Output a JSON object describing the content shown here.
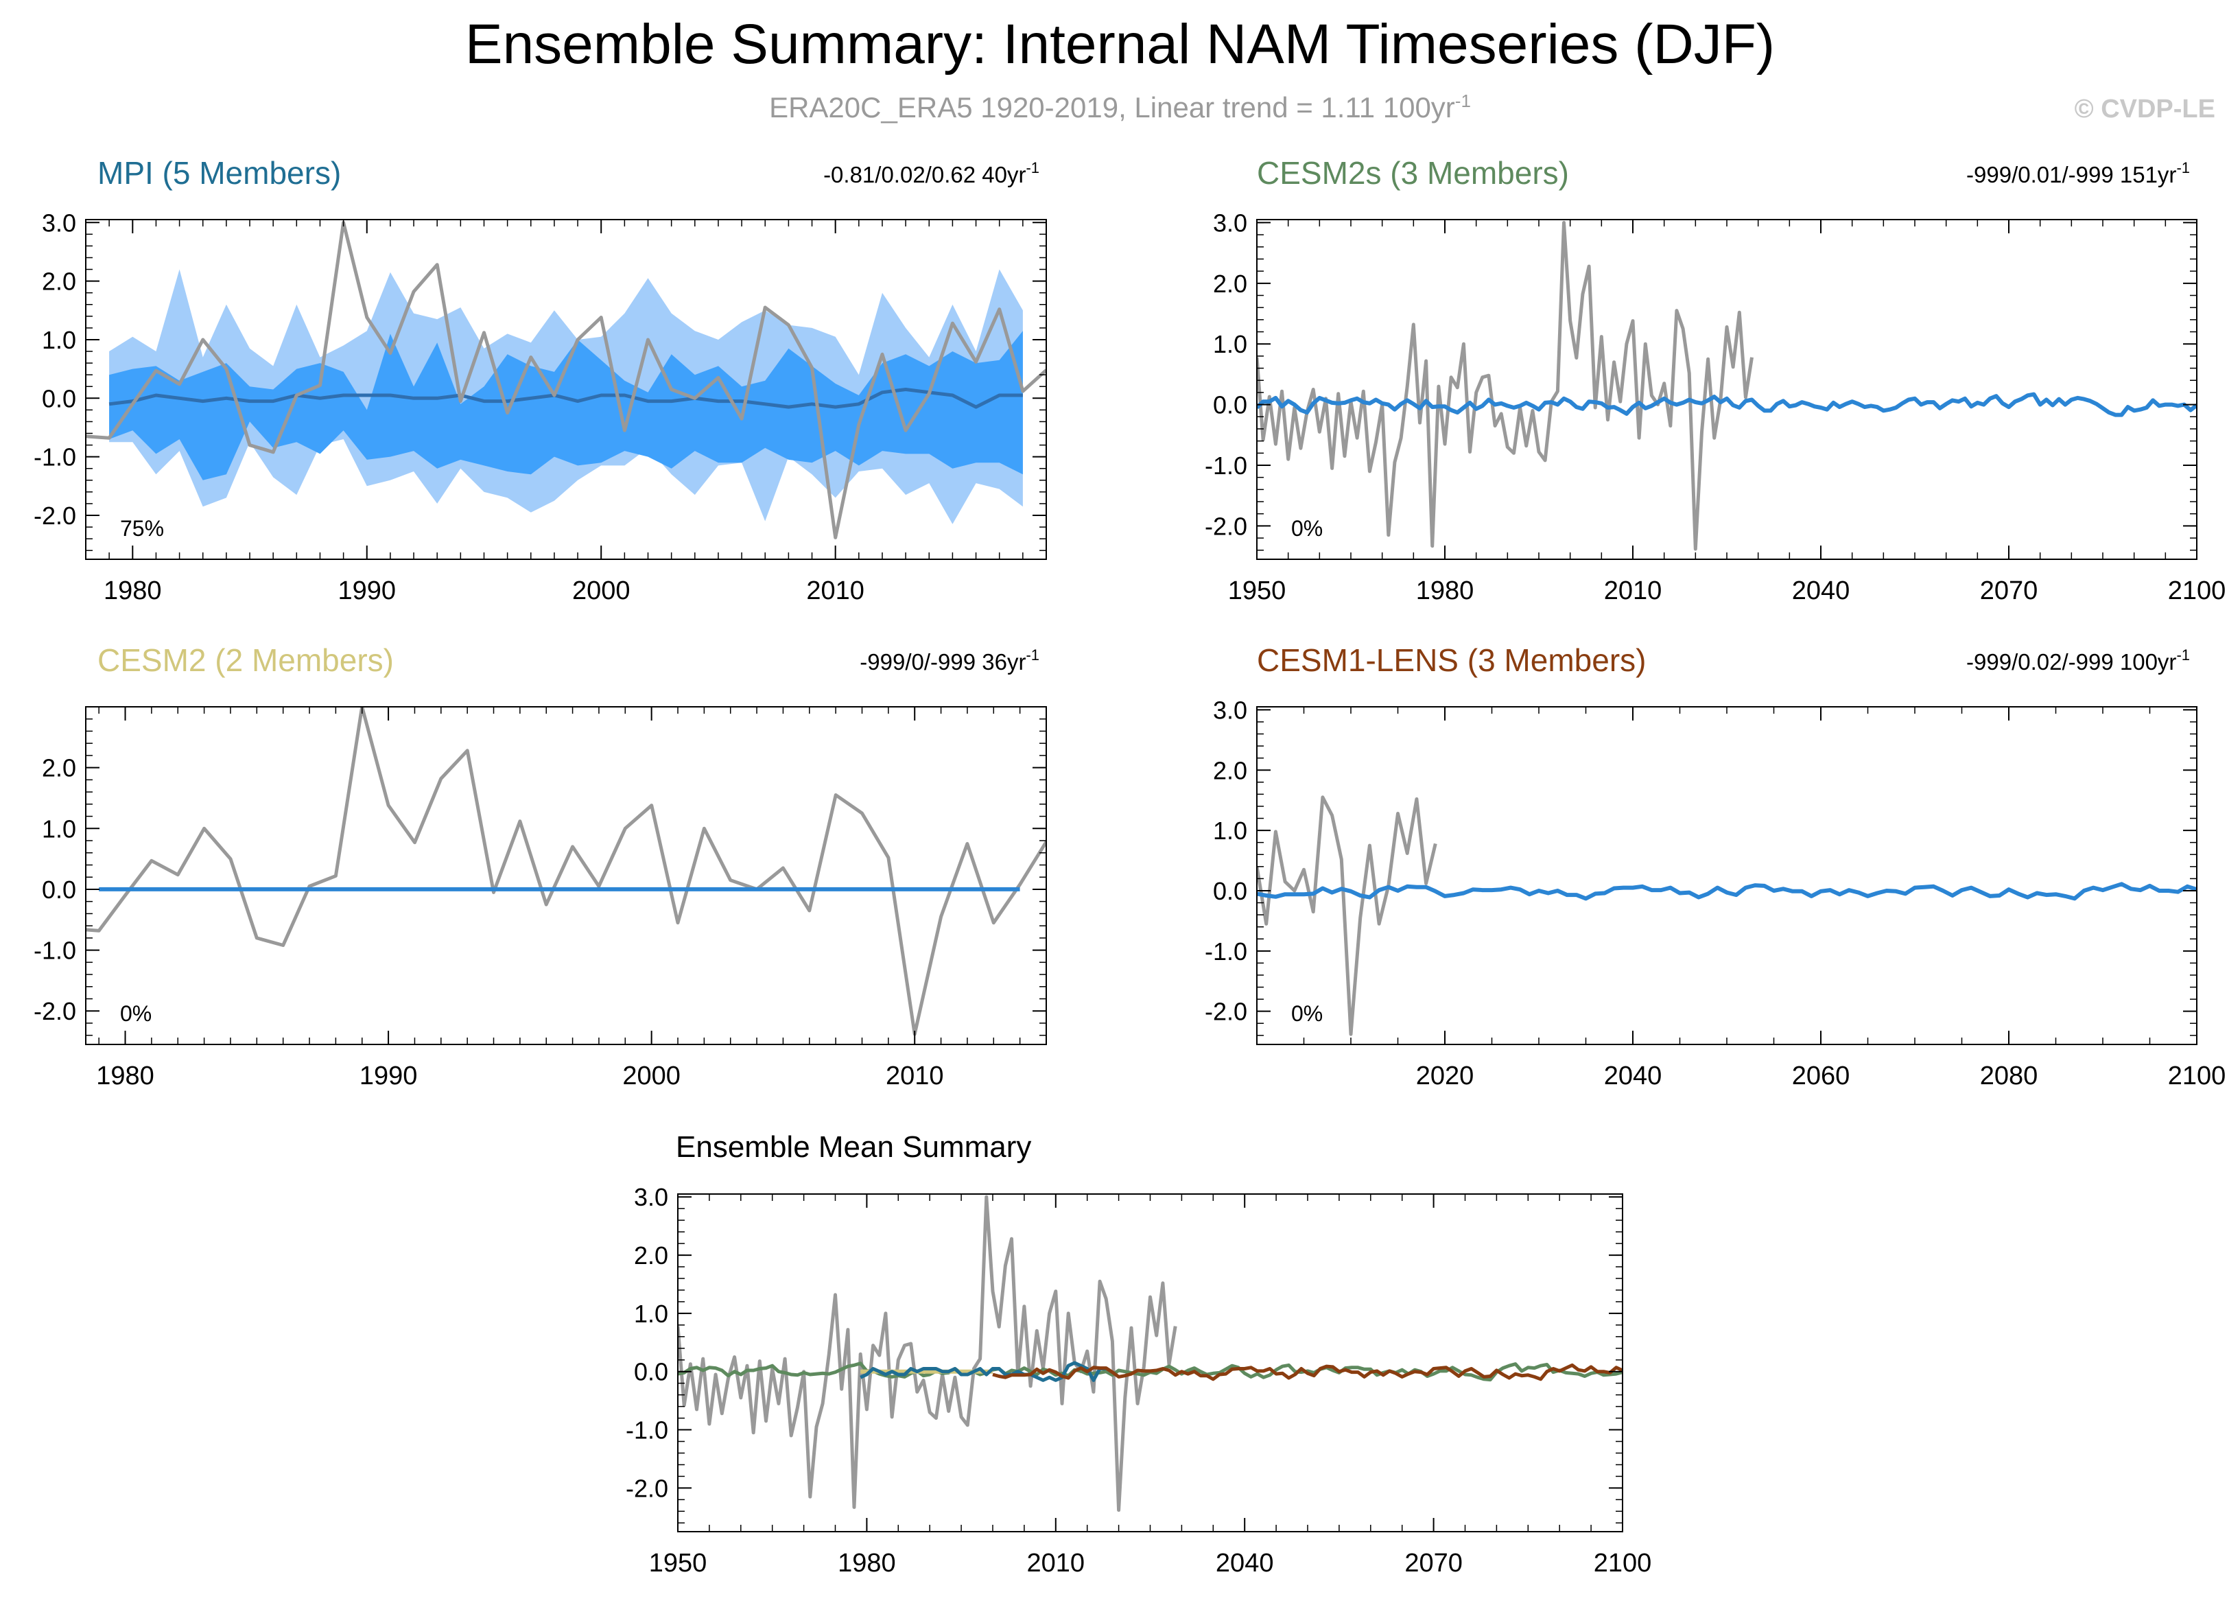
{
  "title": "Ensemble Summary: Internal NAM Timeseries (DJF)",
  "subtitle": "ERA20C_ERA5 1920-2019, Linear trend = 1.11 100yr",
  "subtitle_exp": "-1",
  "copyright": "© CVDP-LE",
  "colors": {
    "obs": "#999999",
    "mpi": "#1f6e93",
    "cesm2s": "#5e8a5e",
    "cesm2": "#d2c77c",
    "cesm1": "#8a3d10",
    "ens_line": "#2b85d4",
    "band_outer": "#a3cdfa",
    "band_inner": "#3fa1fb"
  },
  "chart_data": [
    {
      "id": "mpi",
      "type": "area",
      "title": "MPI (5 Members)",
      "stats": "-0.81/0.02/0.62 40yr",
      "stats_exp": "-1",
      "percent": "75%",
      "xlim": [
        1978,
        2019
      ],
      "ylim": [
        -2.75,
        3.05
      ],
      "xticks": [
        1980,
        1990,
        2000,
        2010
      ],
      "yticks": [
        3.0,
        2.0,
        1.0,
        0.0,
        -1.0,
        -2.0
      ],
      "ytick_labels": [
        "3.0",
        "2.0",
        "1.0",
        "0.0",
        "-1.0",
        "-2.0"
      ],
      "band": {
        "x": [
          1979,
          1980,
          1981,
          1982,
          1983,
          1984,
          1985,
          1986,
          1987,
          1988,
          1989,
          1990,
          1991,
          1992,
          1993,
          1994,
          1995,
          1996,
          1997,
          1998,
          1999,
          2000,
          2001,
          2002,
          2003,
          2004,
          2005,
          2006,
          2007,
          2008,
          2009,
          2010,
          2011,
          2012,
          2013,
          2014,
          2015,
          2016,
          2017,
          2018
        ],
        "max": [
          0.8,
          1.05,
          0.8,
          2.2,
          0.7,
          1.6,
          0.85,
          0.55,
          1.6,
          0.7,
          0.9,
          1.15,
          2.15,
          1.45,
          1.35,
          1.55,
          0.85,
          1.1,
          0.95,
          1.5,
          1.0,
          1.05,
          1.45,
          2.05,
          1.45,
          1.15,
          1.0,
          1.3,
          1.5,
          1.25,
          1.2,
          1.05,
          0.4,
          1.8,
          1.2,
          0.7,
          1.6,
          0.8,
          2.2,
          1.5
        ],
        "q75": [
          0.4,
          0.5,
          0.55,
          0.3,
          0.45,
          0.6,
          0.2,
          0.15,
          0.5,
          0.6,
          0.45,
          -0.2,
          1.1,
          0.2,
          0.95,
          -0.1,
          0.2,
          0.75,
          0.55,
          0.45,
          1.0,
          0.65,
          0.3,
          0.1,
          0.75,
          0.4,
          0.55,
          0.2,
          0.3,
          0.85,
          0.55,
          0.25,
          0.05,
          0.6,
          0.75,
          0.55,
          0.8,
          0.6,
          0.65,
          1.15
        ],
        "q25": [
          -0.7,
          -0.55,
          -0.95,
          -0.7,
          -1.4,
          -1.3,
          -0.4,
          -0.85,
          -0.75,
          -0.95,
          -0.55,
          -1.05,
          -1.0,
          -0.9,
          -1.2,
          -1.05,
          -1.15,
          -1.25,
          -1.3,
          -1.0,
          -1.15,
          -1.1,
          -0.9,
          -1.0,
          -1.2,
          -0.9,
          -1.1,
          -1.1,
          -0.85,
          -1.05,
          -1.1,
          -0.9,
          -1.15,
          -0.9,
          -0.95,
          -0.95,
          -1.2,
          -1.1,
          -1.1,
          -1.3
        ],
        "min": [
          -0.75,
          -0.75,
          -1.3,
          -0.9,
          -1.85,
          -1.7,
          -0.75,
          -1.35,
          -1.65,
          -0.8,
          -0.7,
          -1.5,
          -1.4,
          -1.25,
          -1.8,
          -1.2,
          -1.6,
          -1.7,
          -1.95,
          -1.75,
          -1.4,
          -1.15,
          -1.15,
          -0.85,
          -1.3,
          -1.65,
          -1.15,
          -1.1,
          -2.1,
          -1.0,
          -1.3,
          -1.7,
          -1.25,
          -1.2,
          -1.65,
          -1.45,
          -2.15,
          -1.45,
          -1.55,
          -1.85
        ],
        "mean": [
          -0.1,
          -0.05,
          0.05,
          0.0,
          -0.05,
          0.0,
          -0.05,
          -0.05,
          0.05,
          0.0,
          0.05,
          0.05,
          0.05,
          0.0,
          0.0,
          0.05,
          -0.05,
          -0.05,
          0.0,
          0.05,
          -0.05,
          0.05,
          0.05,
          -0.05,
          -0.05,
          0.0,
          -0.05,
          -0.05,
          -0.1,
          -0.15,
          -0.1,
          -0.15,
          -0.1,
          0.1,
          0.15,
          0.1,
          0.05,
          -0.15,
          0.05,
          0.05
        ]
      },
      "obs": {
        "x": [
          1978,
          1979,
          1980,
          1981,
          1982,
          1983,
          1984,
          1985,
          1986,
          1987,
          1988,
          1989,
          1990,
          1991,
          1992,
          1993,
          1994,
          1995,
          1996,
          1997,
          1998,
          1999,
          2000,
          2001,
          2002,
          2003,
          2004,
          2005,
          2006,
          2007,
          2008,
          2009,
          2010,
          2011,
          2012,
          2013,
          2014,
          2015,
          2016,
          2017,
          2018,
          2019
        ],
        "y": [
          -0.65,
          -0.68,
          -0.1,
          0.47,
          0.24,
          1.0,
          0.5,
          -0.8,
          -0.92,
          0.05,
          0.22,
          3.0,
          1.38,
          0.77,
          1.82,
          2.28,
          -0.05,
          1.12,
          -0.25,
          0.7,
          0.05,
          1.0,
          1.38,
          -0.55,
          1.0,
          0.15,
          0.0,
          0.35,
          -0.35,
          1.55,
          1.25,
          0.52,
          -2.38,
          -0.45,
          0.75,
          -0.55,
          0.08,
          1.28,
          0.62,
          1.52,
          0.12,
          0.48
        ]
      }
    },
    {
      "id": "cesm2s",
      "type": "line",
      "title": "CESM2s (3 Members)",
      "stats": "-999/0.01/-999 151yr",
      "stats_exp": "-1",
      "percent": "0%",
      "xlim": [
        1950,
        2100
      ],
      "ylim": [
        -2.55,
        3.05
      ],
      "xticks": [
        1950,
        1980,
        2010,
        2040,
        2070,
        2100
      ],
      "yticks": [
        3.0,
        2.0,
        1.0,
        0.0,
        -1.0,
        -2.0
      ],
      "ytick_labels": [
        "3.0",
        "2.0",
        "1.0",
        "0.0",
        "-1.0",
        "-2.0"
      ],
      "ens_mean": {
        "x_start": 1950,
        "x_end": 2100,
        "amp": 0.1,
        "seed": 7
      },
      "obs": {
        "x_start": 1950,
        "y": [
          0.78,
          -0.58,
          0.13,
          -0.65,
          0.22,
          -0.9,
          -0.05,
          -0.72,
          -0.12,
          0.25,
          -0.45,
          0.1,
          -1.05,
          0.18,
          -0.85,
          0.05,
          -0.55,
          0.22,
          -1.1,
          -0.62,
          0.0,
          -2.15,
          -0.95,
          -0.55,
          0.3,
          1.32,
          -0.3,
          0.72,
          -2.33,
          0.3,
          -0.65,
          0.45,
          0.28,
          1.0,
          -0.78,
          0.2,
          0.45,
          0.48,
          -0.35,
          -0.15,
          -0.7,
          -0.8,
          -0.05,
          -0.68,
          -0.1,
          -0.78,
          -0.92,
          0.05,
          0.22,
          3.0,
          1.38,
          0.77,
          1.82,
          2.28,
          -0.05,
          1.12,
          -0.25,
          0.7,
          0.05,
          1.0,
          1.38,
          -0.55,
          1.0,
          0.15,
          0.0,
          0.35,
          -0.35,
          1.55,
          1.25,
          0.52,
          -2.38,
          -0.45,
          0.75,
          -0.55,
          0.08,
          1.28,
          0.62,
          1.52,
          0.12,
          0.78
        ]
      }
    },
    {
      "id": "cesm2",
      "type": "line",
      "title": "CESM2 (2 Members)",
      "stats": "-999/0/-999 36yr",
      "stats_exp": "-1",
      "percent": "0%",
      "xlim": [
        1978.5,
        2015
      ],
      "ylim": [
        -2.55,
        3.0
      ],
      "xticks": [
        1980,
        1990,
        2000,
        2010
      ],
      "yticks": [
        2.0,
        1.0,
        0.0,
        -1.0,
        -2.0
      ],
      "ytick_labels": [
        "2.0",
        "1.0",
        "0.0",
        "-1.0",
        "-2.0"
      ],
      "ens_mean": {
        "x": [
          1979,
          2014
        ],
        "y": [
          0.0,
          0.0
        ]
      },
      "obs": {
        "x": [
          1978,
          1979,
          1980,
          1981,
          1982,
          1983,
          1984,
          1985,
          1986,
          1987,
          1988,
          1989,
          1990,
          1991,
          1992,
          1993,
          1994,
          1995,
          1996,
          1997,
          1998,
          1999,
          2000,
          2001,
          2002,
          2003,
          2004,
          2005,
          2006,
          2007,
          2008,
          2009,
          2010,
          2011,
          2012,
          2013,
          2014,
          2015
        ],
        "y": [
          -0.65,
          -0.68,
          -0.1,
          0.47,
          0.24,
          1.0,
          0.5,
          -0.8,
          -0.92,
          0.05,
          0.22,
          3.0,
          1.38,
          0.77,
          1.82,
          2.28,
          -0.05,
          1.12,
          -0.25,
          0.7,
          0.05,
          1.0,
          1.38,
          -0.55,
          1.0,
          0.15,
          0.0,
          0.35,
          -0.35,
          1.55,
          1.25,
          0.52,
          -2.38,
          -0.45,
          0.75,
          -0.55,
          0.08,
          0.78
        ]
      }
    },
    {
      "id": "cesm1",
      "type": "line",
      "title": "CESM1-LENS (3 Members)",
      "stats": "-999/0.02/-999 100yr",
      "stats_exp": "-1",
      "percent": "0%",
      "xlim": [
        2000,
        2100
      ],
      "ylim": [
        -2.55,
        3.05
      ],
      "xticks": [
        2020,
        2040,
        2060,
        2080,
        2100
      ],
      "yticks": [
        3.0,
        2.0,
        1.0,
        0.0,
        -1.0,
        -2.0
      ],
      "ytick_labels": [
        "3.0",
        "2.0",
        "1.0",
        "0.0",
        "-1.0",
        "-2.0"
      ],
      "ens_mean": {
        "x_start": 2000,
        "x_end": 2100,
        "amp": 0.09,
        "seed": 21
      },
      "obs": {
        "x_start": 2000,
        "y": [
          0.4,
          -0.55,
          0.98,
          0.15,
          0.0,
          0.35,
          -0.35,
          1.55,
          1.25,
          0.52,
          -2.38,
          -0.45,
          0.75,
          -0.55,
          0.08,
          1.28,
          0.62,
          1.52,
          0.12,
          0.78
        ]
      }
    },
    {
      "id": "summary",
      "type": "line",
      "title": "Ensemble Mean Summary",
      "xlim": [
        1950,
        2100
      ],
      "ylim": [
        -2.75,
        3.05
      ],
      "xticks": [
        1950,
        1980,
        2010,
        2040,
        2070,
        2100
      ],
      "yticks": [
        3.0,
        2.0,
        1.0,
        0.0,
        -1.0,
        -2.0
      ],
      "ytick_labels": [
        "3.0",
        "2.0",
        "1.0",
        "0.0",
        "-1.0",
        "-2.0"
      ],
      "series_order": [
        "obs",
        "cesm2s",
        "cesm2",
        "mpi",
        "cesm1"
      ]
    }
  ]
}
